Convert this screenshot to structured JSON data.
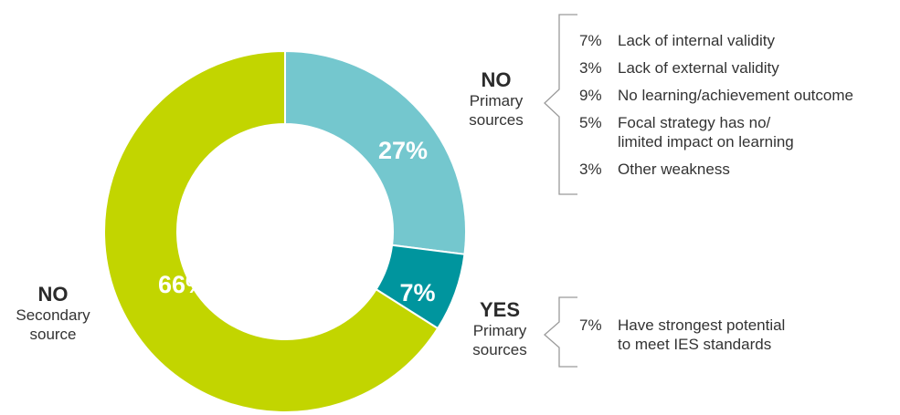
{
  "chart_data": {
    "type": "pie",
    "donut": true,
    "slices": [
      {
        "category_id": "no-primary",
        "value": 27,
        "label": "27%",
        "color": "#74c7ce"
      },
      {
        "category_id": "yes-primary",
        "value": 7,
        "label": "7%",
        "color": "#00959e"
      },
      {
        "category_id": "no-secondary",
        "value": 66,
        "label": "66%",
        "color": "#c2d500"
      }
    ],
    "groups": [
      {
        "id": "no-primary",
        "answer": "NO",
        "desc": "Primary\nsources",
        "details": [
          {
            "pct": "7%",
            "text": "Lack of internal validity"
          },
          {
            "pct": "3%",
            "text": "Lack of external validity"
          },
          {
            "pct": "9%",
            "text": "No learning/achievement outcome"
          },
          {
            "pct": "5%",
            "text": "Focal strategy has no/\nlimited impact on learning"
          },
          {
            "pct": "3%",
            "text": "Other weakness"
          }
        ]
      },
      {
        "id": "yes-primary",
        "answer": "YES",
        "desc": "Primary\nsources",
        "details": [
          {
            "pct": "7%",
            "text": "Have strongest potential\nto meet IES standards"
          }
        ]
      },
      {
        "id": "no-secondary",
        "answer": "NO",
        "desc": "Secondary\nsource",
        "details": []
      }
    ]
  }
}
